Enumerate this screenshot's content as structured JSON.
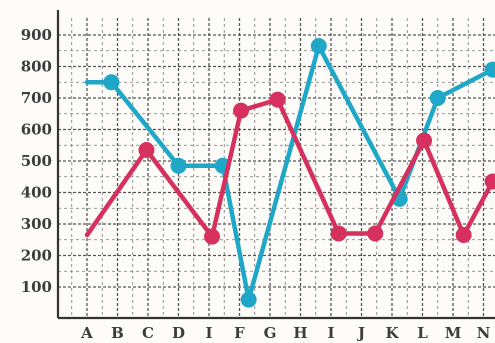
{
  "chart_data": {
    "type": "line",
    "categories": [
      "A",
      "B",
      "C",
      "D",
      "I",
      "F",
      "G",
      "H",
      "I",
      "J",
      "K",
      "L",
      "M",
      "N"
    ],
    "y_ticks": [
      100,
      200,
      300,
      400,
      500,
      600,
      700,
      800,
      900
    ],
    "ylim": [
      0,
      950
    ],
    "grid": true,
    "series": [
      {
        "color": "#1fa7c8",
        "points": [
          {
            "x": 0,
            "y": 750,
            "marker": false
          },
          {
            "x": 0.8,
            "y": 750,
            "marker": true
          },
          {
            "x": 3,
            "y": 485,
            "marker": true
          },
          {
            "x": 4.45,
            "y": 485,
            "marker": true
          },
          {
            "x": 5.3,
            "y": 60,
            "marker": true
          },
          {
            "x": 7.6,
            "y": 865,
            "marker": true
          },
          {
            "x": 10.25,
            "y": 380,
            "marker": true
          },
          {
            "x": 11.5,
            "y": 700,
            "marker": true
          },
          {
            "x": 13.3,
            "y": 790,
            "marker": true
          }
        ]
      },
      {
        "color": "#d6305e",
        "points": [
          {
            "x": 0,
            "y": 265,
            "marker": false
          },
          {
            "x": 1.95,
            "y": 535,
            "marker": true
          },
          {
            "x": 4.1,
            "y": 260,
            "marker": true
          },
          {
            "x": 5.05,
            "y": 660,
            "marker": true
          },
          {
            "x": 6.25,
            "y": 695,
            "marker": true
          },
          {
            "x": 8.25,
            "y": 270,
            "marker": true
          },
          {
            "x": 9.45,
            "y": 270,
            "marker": true
          },
          {
            "x": 11.05,
            "y": 565,
            "marker": true
          },
          {
            "x": 12.35,
            "y": 265,
            "marker": true
          },
          {
            "x": 13.3,
            "y": 435,
            "marker": true
          }
        ]
      }
    ]
  }
}
